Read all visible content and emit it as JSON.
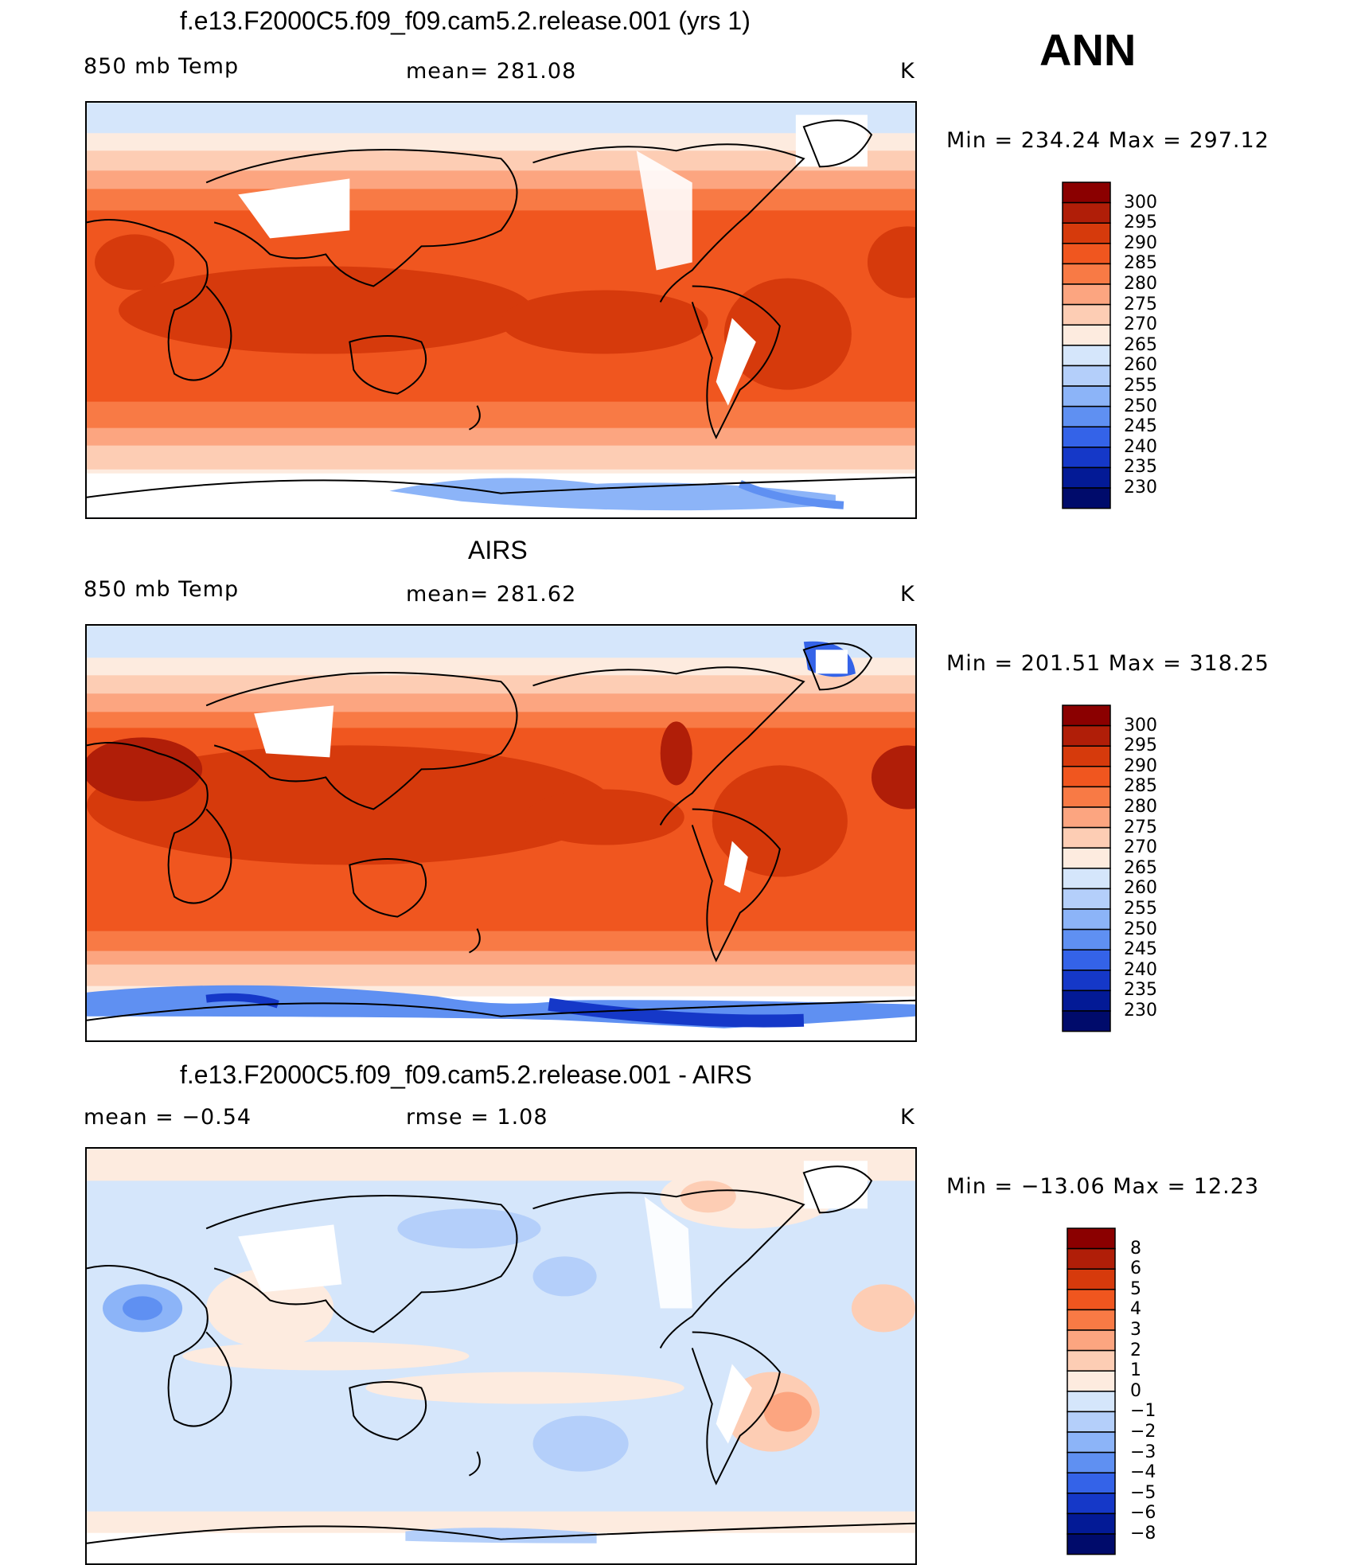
{
  "season": "ANN",
  "unit": "K",
  "panels": [
    {
      "title": "f.e13.F2000C5.f09_f09.cam5.2.release.001 (yrs 1)",
      "left_label": "850 mb Temp",
      "mid_label": "mean= 281.08",
      "right_label": "K",
      "minmax": "Min = 234.24 Max = 297.12"
    },
    {
      "title": "AIRS",
      "left_label": "850 mb Temp",
      "mid_label": "mean= 281.62",
      "right_label": "K",
      "minmax": "Min = 201.51 Max = 318.25"
    },
    {
      "title": "f.e13.F2000C5.f09_f09.cam5.2.release.001 - AIRS",
      "left_label": "mean =   −0.54",
      "mid_label": "rmse =    1.08",
      "right_label": "K",
      "minmax": "Min = −13.06 Max =   12.23"
    }
  ],
  "chart_data": [
    {
      "type": "heatmap",
      "title": "f.e13.F2000C5.f09_f09.cam5.2.release.001 (yrs 1)",
      "variable": "850 mb Temp",
      "units": "K",
      "mean": 281.08,
      "min": 234.24,
      "max": 297.12,
      "projection": "cylindrical equidistant, Pacific-centered",
      "colorbar_levels": [
        300,
        295,
        290,
        285,
        280,
        275,
        270,
        265,
        260,
        255,
        250,
        245,
        240,
        235,
        230
      ],
      "colorbar_colors": [
        "#8b0000",
        "#b01e08",
        "#d63a0c",
        "#f0561f",
        "#f87a45",
        "#fca580",
        "#fdcdb4",
        "#fdebdf",
        "#d5e6fb",
        "#b4cffa",
        "#8cb4f8",
        "#5f90f2",
        "#3463e8",
        "#1538c8",
        "#031a96",
        "#000b6b"
      ]
    },
    {
      "type": "heatmap",
      "title": "AIRS",
      "variable": "850 mb Temp",
      "units": "K",
      "mean": 281.62,
      "min": 201.51,
      "max": 318.25,
      "projection": "cylindrical equidistant, Pacific-centered",
      "colorbar_levels": [
        300,
        295,
        290,
        285,
        280,
        275,
        270,
        265,
        260,
        255,
        250,
        245,
        240,
        235,
        230
      ],
      "colorbar_colors": [
        "#8b0000",
        "#b01e08",
        "#d63a0c",
        "#f0561f",
        "#f87a45",
        "#fca580",
        "#fdcdb4",
        "#fdebdf",
        "#d5e6fb",
        "#b4cffa",
        "#8cb4f8",
        "#5f90f2",
        "#3463e8",
        "#1538c8",
        "#031a96",
        "#000b6b"
      ]
    },
    {
      "type": "heatmap",
      "title": "f.e13.F2000C5.f09_f09.cam5.2.release.001 - AIRS",
      "units": "K",
      "mean": -0.54,
      "rmse": 1.08,
      "min": -13.06,
      "max": 12.23,
      "projection": "cylindrical equidistant, Pacific-centered",
      "colorbar_levels": [
        "8",
        "6",
        "5",
        "4",
        "3",
        "2",
        "1",
        "0",
        "−1",
        "−2",
        "−3",
        "−4",
        "−5",
        "−6",
        "−8"
      ],
      "colorbar_colors": [
        "#8b0000",
        "#b01e08",
        "#d63a0c",
        "#f0561f",
        "#f87a45",
        "#fca580",
        "#fdcdb4",
        "#fdebdf",
        "#d5e6fb",
        "#b4cffa",
        "#8cb4f8",
        "#5f90f2",
        "#3463e8",
        "#1538c8",
        "#031a96",
        "#000b6b"
      ]
    }
  ]
}
